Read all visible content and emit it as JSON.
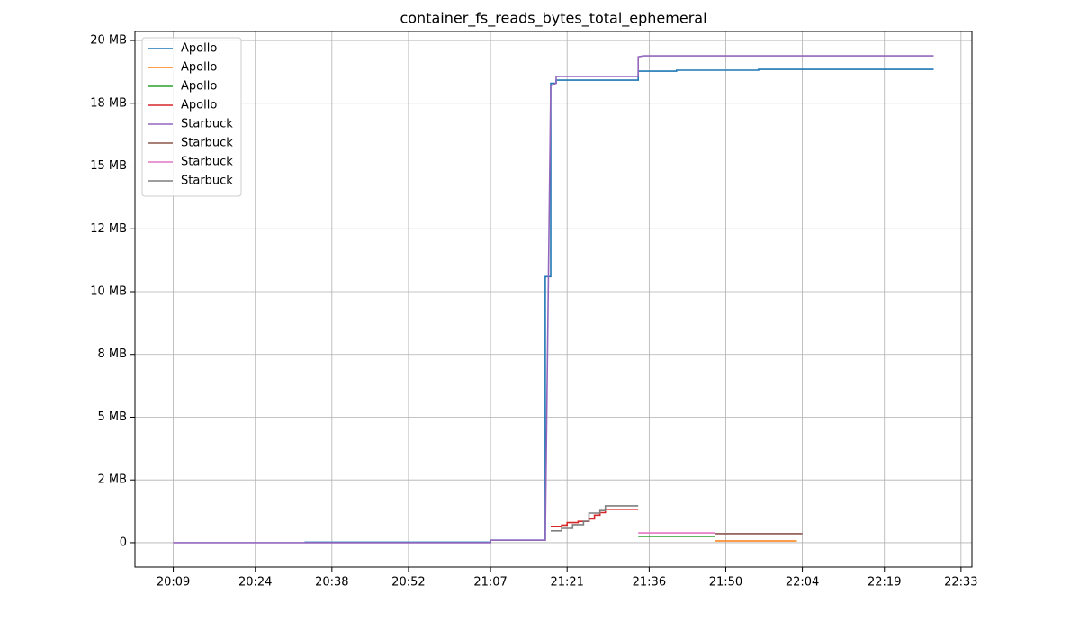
{
  "chart_data": {
    "type": "line",
    "title": "container_fs_reads_bytes_total_ephemeral",
    "xlim": [
      "20:02",
      "22:35"
    ],
    "xticks": [
      "20:09",
      "20:24",
      "20:38",
      "20:52",
      "21:07",
      "21:21",
      "21:36",
      "21:50",
      "22:04",
      "22:19",
      "22:33"
    ],
    "ylim": [
      -0.97,
      20.36
    ],
    "yticks": [
      0,
      {
        "value": 2.5,
        "label": "2 MB"
      },
      {
        "value": 5,
        "label": "5 MB"
      },
      {
        "value": 7.5,
        "label": "8 MB"
      },
      {
        "value": 10,
        "label": "10 MB"
      },
      {
        "value": 12.5,
        "label": "12 MB"
      },
      {
        "value": 15,
        "label": "15 MB"
      },
      {
        "value": 17.5,
        "label": "18 MB"
      },
      {
        "value": 20,
        "label": "20 MB"
      }
    ],
    "grid": true,
    "legend": "upper left",
    "series": [
      {
        "name": "Apollo",
        "color": "#1f77b4",
        "x": [
          "20:33",
          "21:07",
          "21:07",
          "21:17",
          "21:17",
          "21:18",
          "21:18",
          "21:19",
          "21:19",
          "21:34",
          "21:34",
          "21:41",
          "21:41",
          "21:56",
          "21:56",
          "22:28"
        ],
        "values": [
          0.02,
          0.02,
          0.1,
          0.1,
          10.6,
          10.6,
          18.3,
          18.3,
          18.42,
          18.42,
          18.78,
          18.78,
          18.82,
          18.82,
          18.85,
          18.85
        ]
      },
      {
        "name": "Apollo",
        "color": "#ff7f0e",
        "x": [
          "21:48",
          "22:03"
        ],
        "values": [
          0.07,
          0.07
        ]
      },
      {
        "name": "Apollo",
        "color": "#2ca02c",
        "x": [
          "21:34",
          "21:48"
        ],
        "values": [
          0.25,
          0.25
        ]
      },
      {
        "name": "Apollo",
        "color": "#d62728",
        "x": [
          "21:18",
          "21:20",
          "21:20",
          "21:21",
          "21:21",
          "21:23",
          "21:23",
          "21:25",
          "21:25",
          "21:26",
          "21:26",
          "21:27",
          "21:27",
          "21:28",
          "21:28",
          "21:34"
        ],
        "values": [
          0.65,
          0.65,
          0.7,
          0.7,
          0.8,
          0.8,
          0.85,
          0.85,
          0.95,
          0.95,
          1.1,
          1.1,
          1.2,
          1.2,
          1.33,
          1.33
        ]
      },
      {
        "name": "Starbuck",
        "color": "#9467bd",
        "x": [
          "20:09",
          "21:07",
          "21:07",
          "21:17",
          "21:18",
          "21:19",
          "21:19",
          "21:34",
          "21:34",
          "21:35",
          "22:28"
        ],
        "values": [
          0,
          0,
          0.1,
          0.1,
          18.2,
          18.3,
          18.57,
          18.57,
          19.35,
          19.39,
          19.39
        ]
      },
      {
        "name": "Starbuck",
        "color": "#8c564b",
        "x": [
          "21:48",
          "22:04"
        ],
        "values": [
          0.36,
          0.36
        ]
      },
      {
        "name": "Starbuck",
        "color": "#e377c2",
        "x": [
          "21:34",
          "21:48"
        ],
        "values": [
          0.39,
          0.39
        ]
      },
      {
        "name": "Starbuck",
        "color": "#7f7f7f",
        "x": [
          "21:18",
          "21:20",
          "21:20",
          "21:22",
          "21:22",
          "21:24",
          "21:24",
          "21:25",
          "21:25",
          "21:27",
          "21:27",
          "21:28",
          "21:28",
          "21:34"
        ],
        "values": [
          0.47,
          0.47,
          0.57,
          0.57,
          0.72,
          0.72,
          0.86,
          0.86,
          1.18,
          1.18,
          1.28,
          1.28,
          1.47,
          1.47
        ]
      }
    ]
  }
}
